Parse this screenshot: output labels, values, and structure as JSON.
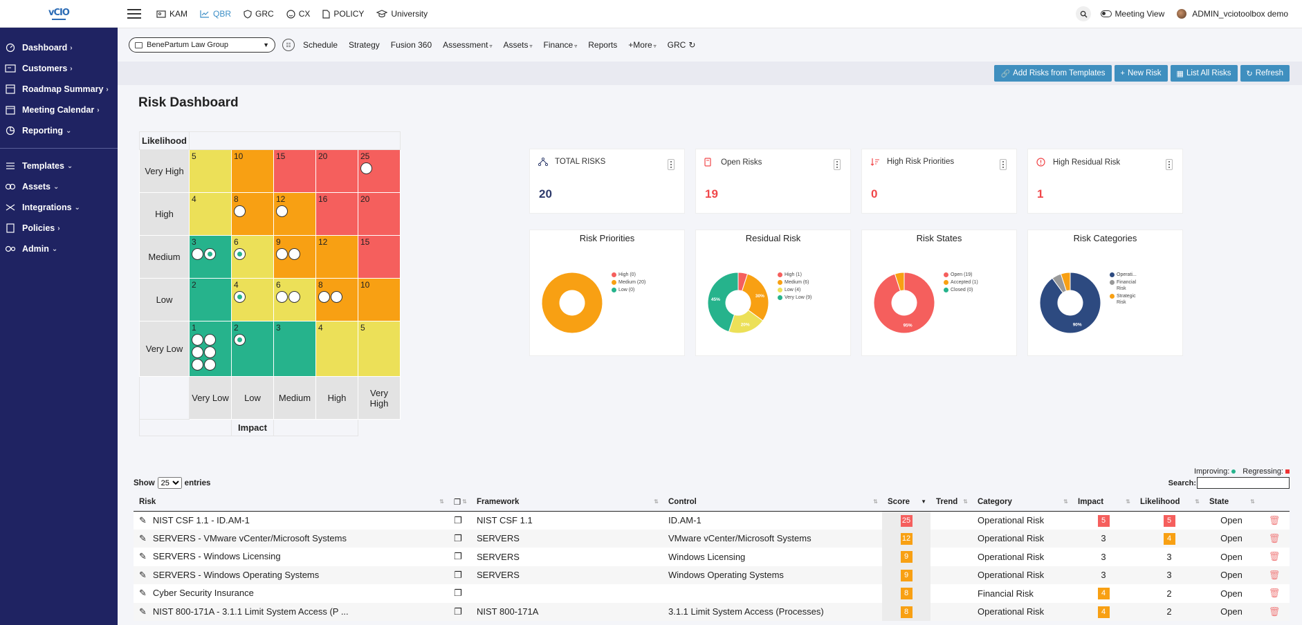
{
  "top_tabs": [
    {
      "label": "KAM",
      "icon": "id-card-icon"
    },
    {
      "label": "QBR",
      "icon": "line-chart-icon",
      "active": true
    },
    {
      "label": "GRC",
      "icon": "shield-icon"
    },
    {
      "label": "CX",
      "icon": "smile-icon"
    },
    {
      "label": "POLICY",
      "icon": "document-icon"
    },
    {
      "label": "University",
      "icon": "graduation-cap-icon"
    }
  ],
  "topright": {
    "meeting_view": "Meeting View",
    "user": "ADMIN_vciotoolbox demo"
  },
  "sidebar": {
    "items": [
      {
        "label": "Dashboard",
        "arrow": ">"
      },
      {
        "label": "Customers",
        "arrow": ">"
      },
      {
        "label": "Roadmap Summary",
        "arrow": ">"
      },
      {
        "label": "Meeting Calendar",
        "arrow": ">"
      },
      {
        "label": "Reporting",
        "arrow": "v"
      },
      {
        "label": "Templates",
        "arrow": "v"
      },
      {
        "label": "Assets",
        "arrow": "v"
      },
      {
        "label": "Integrations",
        "arrow": "v"
      },
      {
        "label": "Policies",
        "arrow": ">"
      },
      {
        "label": "Admin",
        "arrow": "v"
      }
    ]
  },
  "subnav": {
    "org": "BenePartum Law Group",
    "items": [
      "Schedule",
      "Strategy",
      "Fusion 360",
      "Assessment",
      "Assets",
      "Finance",
      "Reports",
      "+More",
      "GRC"
    ]
  },
  "actions": {
    "add_templates": "Add Risks from Templates",
    "new_risk": "New Risk",
    "list_all": "List All Risks",
    "refresh": "Refresh"
  },
  "page_title": "Risk Dashboard",
  "matrix": {
    "likelihood_label": "Likelihood",
    "impact_label": "Impact",
    "rows": [
      {
        "label": "Very High",
        "cells": [
          {
            "score": "5",
            "color": "y",
            "dots": 0
          },
          {
            "score": "10",
            "color": "o",
            "dots": 0
          },
          {
            "score": "15",
            "color": "r",
            "dots": 0
          },
          {
            "score": "20",
            "color": "r",
            "dots": 0
          },
          {
            "score": "25",
            "color": "r",
            "dots": 1
          }
        ]
      },
      {
        "label": "High",
        "cells": [
          {
            "score": "4",
            "color": "y",
            "dots": 0
          },
          {
            "score": "8",
            "color": "o",
            "dots": 1
          },
          {
            "score": "12",
            "color": "o",
            "dots": 1
          },
          {
            "score": "16",
            "color": "r",
            "dots": 0
          },
          {
            "score": "20",
            "color": "r",
            "dots": 0
          }
        ]
      },
      {
        "label": "Medium",
        "cells": [
          {
            "score": "3",
            "color": "g",
            "dots": 2,
            "inner": [
              1
            ]
          },
          {
            "score": "6",
            "color": "y",
            "dots": 1,
            "inner": [
              0
            ]
          },
          {
            "score": "9",
            "color": "o",
            "dots": 2
          },
          {
            "score": "12",
            "color": "o",
            "dots": 0
          },
          {
            "score": "15",
            "color": "r",
            "dots": 0
          }
        ]
      },
      {
        "label": "Low",
        "cells": [
          {
            "score": "2",
            "color": "g",
            "dots": 0
          },
          {
            "score": "4",
            "color": "y",
            "dots": 1,
            "inner": [
              0
            ]
          },
          {
            "score": "6",
            "color": "y",
            "dots": 2
          },
          {
            "score": "8",
            "color": "o",
            "dots": 2
          },
          {
            "score": "10",
            "color": "o",
            "dots": 0
          }
        ]
      },
      {
        "label": "Very Low",
        "cells": [
          {
            "score": "1",
            "color": "g",
            "dots": 6
          },
          {
            "score": "2",
            "color": "g",
            "dots": 1,
            "inner": [
              0
            ]
          },
          {
            "score": "3",
            "color": "g",
            "dots": 0
          },
          {
            "score": "4",
            "color": "y",
            "dots": 0
          },
          {
            "score": "5",
            "color": "y",
            "dots": 0
          }
        ]
      }
    ],
    "columns": [
      "Very Low",
      "Low",
      "Medium",
      "High",
      "Very High"
    ]
  },
  "stats": [
    {
      "label": "TOTAL RISKS",
      "value": "20",
      "color": "#2d3a6b",
      "icon": "hierarchy-icon"
    },
    {
      "label": "Open Risks",
      "value": "19",
      "color": "#f0474a",
      "icon": "folder-icon"
    },
    {
      "label": "High Risk Priorities",
      "value": "0",
      "color": "#f0474a",
      "icon": "sort-icon"
    },
    {
      "label": "High Residual Risk",
      "value": "1",
      "color": "#f0474a",
      "icon": "alert-icon"
    }
  ],
  "charts": [
    {
      "title": "Risk Priorities",
      "legend": [
        {
          "label": "High (0)",
          "color": "#f55f5d"
        },
        {
          "label": "Medium (20)",
          "color": "#f8a013"
        },
        {
          "label": "Low (0)",
          "color": "#26b38c"
        }
      ],
      "slices": [
        {
          "value": 100,
          "color": "#f8a013"
        }
      ],
      "labels": []
    },
    {
      "title": "Residual Risk",
      "legend": [
        {
          "label": "High (1)",
          "color": "#f55f5d"
        },
        {
          "label": "Medium (6)",
          "color": "#f8a013"
        },
        {
          "label": "Low (4)",
          "color": "#ece058"
        },
        {
          "label": "Very Low (9)",
          "color": "#26b38c"
        }
      ],
      "slices": [
        {
          "value": 5,
          "color": "#f55f5d"
        },
        {
          "value": 30,
          "color": "#f8a013",
          "label": "30%"
        },
        {
          "value": 20,
          "color": "#ece058",
          "label": "20%"
        },
        {
          "value": 45,
          "color": "#26b38c",
          "label": "45%"
        }
      ]
    },
    {
      "title": "Risk States",
      "legend": [
        {
          "label": "Open (19)",
          "color": "#f55f5d"
        },
        {
          "label": "Accepted (1)",
          "color": "#f8a013"
        },
        {
          "label": "Closed (0)",
          "color": "#26b38c"
        }
      ],
      "slices": [
        {
          "value": 95,
          "color": "#f55f5d",
          "label": "95%"
        },
        {
          "value": 5,
          "color": "#f8a013"
        }
      ]
    },
    {
      "title": "Risk Categories",
      "legend": [
        {
          "label": "Operati...",
          "color": "#2d4a80"
        },
        {
          "label": "Financial Risk",
          "color": "#999999"
        },
        {
          "label": "Strategic Risk",
          "color": "#f8a013"
        }
      ],
      "slices": [
        {
          "value": 90,
          "color": "#2d4a80",
          "label": "90%"
        },
        {
          "value": 5,
          "color": "#999999"
        },
        {
          "value": 5,
          "color": "#f8a013"
        }
      ]
    }
  ],
  "table": {
    "improving": "Improving:",
    "regressing": "Regressing:",
    "show": "Show",
    "entries": "entries",
    "page_size": "25",
    "search_label": "Search:",
    "headers": [
      "Risk",
      "",
      "Framework",
      "Control",
      "Score",
      "Trend",
      "Category",
      "Impact",
      "Likelihood",
      "State",
      ""
    ],
    "rows": [
      {
        "risk": "NIST CSF 1.1 - ID.AM-1",
        "framework": "NIST CSF 1.1",
        "control": "ID.AM-1",
        "score": "25",
        "score_color": "r",
        "category": "Operational Risk",
        "impact": "5",
        "impact_badge": "r",
        "likelihood": "5",
        "likelihood_badge": "r",
        "state": "Open"
      },
      {
        "risk": "SERVERS - VMware vCenter/Microsoft Systems",
        "framework": "SERVERS",
        "control": "VMware vCenter/Microsoft Systems",
        "score": "12",
        "score_color": "o",
        "category": "Operational Risk",
        "impact": "3",
        "impact_badge": "",
        "likelihood": "4",
        "likelihood_badge": "o",
        "state": "Open"
      },
      {
        "risk": "SERVERS - Windows Licensing",
        "framework": "SERVERS",
        "control": "Windows Licensing",
        "score": "9",
        "score_color": "o",
        "category": "Operational Risk",
        "impact": "3",
        "impact_badge": "",
        "likelihood": "3",
        "likelihood_badge": "",
        "state": "Open"
      },
      {
        "risk": "SERVERS - Windows Operating Systems",
        "framework": "SERVERS",
        "control": "Windows Operating Systems",
        "score": "9",
        "score_color": "o",
        "category": "Operational Risk",
        "impact": "3",
        "impact_badge": "",
        "likelihood": "3",
        "likelihood_badge": "",
        "state": "Open"
      },
      {
        "risk": "Cyber Security Insurance",
        "framework": "",
        "control": "",
        "score": "8",
        "score_color": "o",
        "category": "Financial Risk",
        "impact": "4",
        "impact_badge": "o",
        "likelihood": "2",
        "likelihood_badge": "",
        "state": "Open"
      },
      {
        "risk": "NIST 800-171A - 3.1.1 Limit System Access (P ...",
        "framework": "NIST 800-171A",
        "control": "3.1.1 Limit System Access (Processes)",
        "score": "8",
        "score_color": "o",
        "category": "Operational Risk",
        "impact": "4",
        "impact_badge": "o",
        "likelihood": "2",
        "likelihood_badge": "",
        "state": "Open"
      }
    ]
  }
}
